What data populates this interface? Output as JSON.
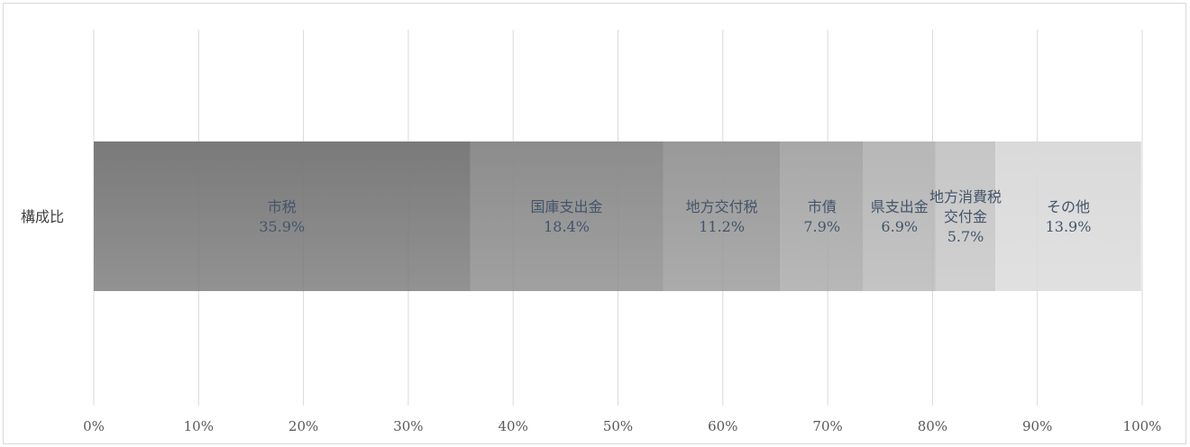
{
  "chart_data": {
    "type": "bar",
    "orientation": "horizontal",
    "stacked": "100%",
    "categories": [
      "構成比"
    ],
    "series": [
      {
        "name": "市税",
        "values": [
          35.9
        ],
        "label": [
          "市税",
          "35.9%"
        ],
        "color": "#7a7a7a"
      },
      {
        "name": "国庫支出金",
        "values": [
          18.4
        ],
        "label": [
          "国庫支出金",
          "18.4%"
        ],
        "color": "#8c8c8c"
      },
      {
        "name": "地方交付税",
        "values": [
          11.2
        ],
        "label": [
          "地方交付税",
          "11.2%"
        ],
        "color": "#999999"
      },
      {
        "name": "市債",
        "values": [
          7.9
        ],
        "label": [
          "市債",
          "7.9%"
        ],
        "color": "#a8a8a8"
      },
      {
        "name": "県支出金",
        "values": [
          6.9
        ],
        "label": [
          "県支出金",
          "6.9%"
        ],
        "color": "#b7b7b7"
      },
      {
        "name": "地方消費税交付金",
        "values": [
          5.7
        ],
        "label": [
          "地方消費税",
          "交付金",
          "5.7%"
        ],
        "color": "#c6c6c6"
      },
      {
        "name": "その他",
        "values": [
          13.9
        ],
        "label": [
          "その他",
          "13.9%"
        ],
        "color": "#dadada"
      }
    ],
    "xlim": [
      0,
      100
    ],
    "xticks": [
      "0%",
      "10%",
      "20%",
      "30%",
      "40%",
      "50%",
      "60%",
      "70%",
      "80%",
      "90%",
      "100%"
    ],
    "grid": true,
    "legend": "none"
  }
}
